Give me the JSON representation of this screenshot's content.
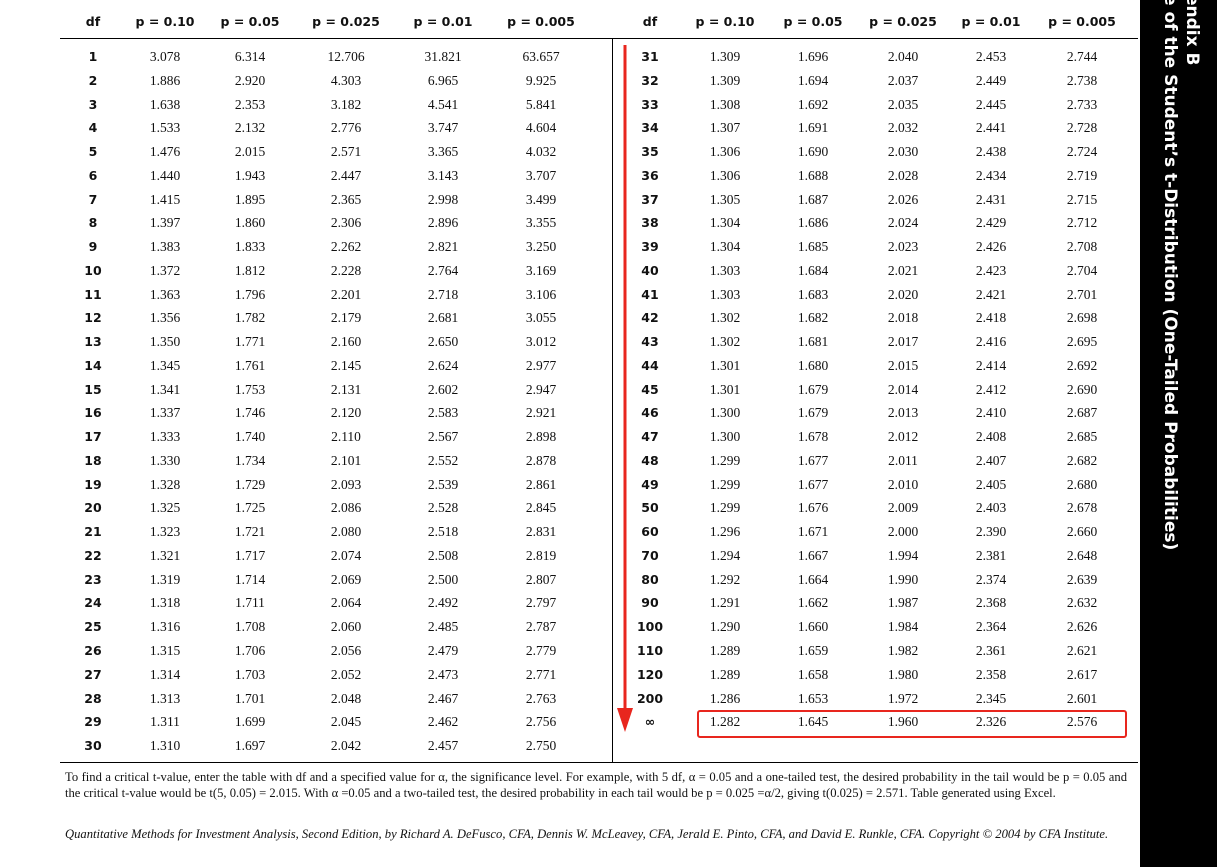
{
  "side": {
    "line1": "endix B",
    "line2": "e of the Student’s t-Distribution (One-Tailed Probabilities)"
  },
  "table": {
    "left_header": [
      "df",
      "p = 0.10",
      "p = 0.05",
      "p = 0.025",
      "p = 0.01",
      "p = 0.005"
    ],
    "right_header": [
      "df",
      "p = 0.10",
      "p = 0.05",
      "p = 0.025",
      "p = 0.01",
      "p = 0.005"
    ],
    "left_rows": [
      [
        "1",
        "3.078",
        "6.314",
        "12.706",
        "31.821",
        "63.657"
      ],
      [
        "2",
        "1.886",
        "2.920",
        "4.303",
        "6.965",
        "9.925"
      ],
      [
        "3",
        "1.638",
        "2.353",
        "3.182",
        "4.541",
        "5.841"
      ],
      [
        "4",
        "1.533",
        "2.132",
        "2.776",
        "3.747",
        "4.604"
      ],
      [
        "5",
        "1.476",
        "2.015",
        "2.571",
        "3.365",
        "4.032"
      ],
      [
        "6",
        "1.440",
        "1.943",
        "2.447",
        "3.143",
        "3.707"
      ],
      [
        "7",
        "1.415",
        "1.895",
        "2.365",
        "2.998",
        "3.499"
      ],
      [
        "8",
        "1.397",
        "1.860",
        "2.306",
        "2.896",
        "3.355"
      ],
      [
        "9",
        "1.383",
        "1.833",
        "2.262",
        "2.821",
        "3.250"
      ],
      [
        "10",
        "1.372",
        "1.812",
        "2.228",
        "2.764",
        "3.169"
      ],
      [
        "11",
        "1.363",
        "1.796",
        "2.201",
        "2.718",
        "3.106"
      ],
      [
        "12",
        "1.356",
        "1.782",
        "2.179",
        "2.681",
        "3.055"
      ],
      [
        "13",
        "1.350",
        "1.771",
        "2.160",
        "2.650",
        "3.012"
      ],
      [
        "14",
        "1.345",
        "1.761",
        "2.145",
        "2.624",
        "2.977"
      ],
      [
        "15",
        "1.341",
        "1.753",
        "2.131",
        "2.602",
        "2.947"
      ],
      [
        "16",
        "1.337",
        "1.746",
        "2.120",
        "2.583",
        "2.921"
      ],
      [
        "17",
        "1.333",
        "1.740",
        "2.110",
        "2.567",
        "2.898"
      ],
      [
        "18",
        "1.330",
        "1.734",
        "2.101",
        "2.552",
        "2.878"
      ],
      [
        "19",
        "1.328",
        "1.729",
        "2.093",
        "2.539",
        "2.861"
      ],
      [
        "20",
        "1.325",
        "1.725",
        "2.086",
        "2.528",
        "2.845"
      ],
      [
        "21",
        "1.323",
        "1.721",
        "2.080",
        "2.518",
        "2.831"
      ],
      [
        "22",
        "1.321",
        "1.717",
        "2.074",
        "2.508",
        "2.819"
      ],
      [
        "23",
        "1.319",
        "1.714",
        "2.069",
        "2.500",
        "2.807"
      ],
      [
        "24",
        "1.318",
        "1.711",
        "2.064",
        "2.492",
        "2.797"
      ],
      [
        "25",
        "1.316",
        "1.708",
        "2.060",
        "2.485",
        "2.787"
      ],
      [
        "26",
        "1.315",
        "1.706",
        "2.056",
        "2.479",
        "2.779"
      ],
      [
        "27",
        "1.314",
        "1.703",
        "2.052",
        "2.473",
        "2.771"
      ],
      [
        "28",
        "1.313",
        "1.701",
        "2.048",
        "2.467",
        "2.763"
      ],
      [
        "29",
        "1.311",
        "1.699",
        "2.045",
        "2.462",
        "2.756"
      ],
      [
        "30",
        "1.310",
        "1.697",
        "2.042",
        "2.457",
        "2.750"
      ]
    ],
    "right_rows": [
      [
        "31",
        "1.309",
        "1.696",
        "2.040",
        "2.453",
        "2.744"
      ],
      [
        "32",
        "1.309",
        "1.694",
        "2.037",
        "2.449",
        "2.738"
      ],
      [
        "33",
        "1.308",
        "1.692",
        "2.035",
        "2.445",
        "2.733"
      ],
      [
        "34",
        "1.307",
        "1.691",
        "2.032",
        "2.441",
        "2.728"
      ],
      [
        "35",
        "1.306",
        "1.690",
        "2.030",
        "2.438",
        "2.724"
      ],
      [
        "36",
        "1.306",
        "1.688",
        "2.028",
        "2.434",
        "2.719"
      ],
      [
        "37",
        "1.305",
        "1.687",
        "2.026",
        "2.431",
        "2.715"
      ],
      [
        "38",
        "1.304",
        "1.686",
        "2.024",
        "2.429",
        "2.712"
      ],
      [
        "39",
        "1.304",
        "1.685",
        "2.023",
        "2.426",
        "2.708"
      ],
      [
        "40",
        "1.303",
        "1.684",
        "2.021",
        "2.423",
        "2.704"
      ],
      [
        "41",
        "1.303",
        "1.683",
        "2.020",
        "2.421",
        "2.701"
      ],
      [
        "42",
        "1.302",
        "1.682",
        "2.018",
        "2.418",
        "2.698"
      ],
      [
        "43",
        "1.302",
        "1.681",
        "2.017",
        "2.416",
        "2.695"
      ],
      [
        "44",
        "1.301",
        "1.680",
        "2.015",
        "2.414",
        "2.692"
      ],
      [
        "45",
        "1.301",
        "1.679",
        "2.014",
        "2.412",
        "2.690"
      ],
      [
        "46",
        "1.300",
        "1.679",
        "2.013",
        "2.410",
        "2.687"
      ],
      [
        "47",
        "1.300",
        "1.678",
        "2.012",
        "2.408",
        "2.685"
      ],
      [
        "48",
        "1.299",
        "1.677",
        "2.011",
        "2.407",
        "2.682"
      ],
      [
        "49",
        "1.299",
        "1.677",
        "2.010",
        "2.405",
        "2.680"
      ],
      [
        "50",
        "1.299",
        "1.676",
        "2.009",
        "2.403",
        "2.678"
      ],
      [
        "60",
        "1.296",
        "1.671",
        "2.000",
        "2.390",
        "2.660"
      ],
      [
        "70",
        "1.294",
        "1.667",
        "1.994",
        "2.381",
        "2.648"
      ],
      [
        "80",
        "1.292",
        "1.664",
        "1.990",
        "2.374",
        "2.639"
      ],
      [
        "90",
        "1.291",
        "1.662",
        "1.987",
        "2.368",
        "2.632"
      ],
      [
        "100",
        "1.290",
        "1.660",
        "1.984",
        "2.364",
        "2.626"
      ],
      [
        "110",
        "1.289",
        "1.659",
        "1.982",
        "2.361",
        "2.621"
      ],
      [
        "120",
        "1.289",
        "1.658",
        "1.980",
        "2.358",
        "2.617"
      ],
      [
        "200",
        "1.286",
        "1.653",
        "1.972",
        "2.345",
        "2.601"
      ],
      [
        "∞",
        "1.282",
        "1.645",
        "1.960",
        "2.326",
        "2.576"
      ]
    ]
  },
  "footnote": "To find a critical t-value, enter the table with df and a specified value for α, the significance level. For example, with 5 df, α = 0.05 and a one-tailed test, the desired probability in the tail would be p = 0.05 and the critical t-value would be t(5, 0.05) = 2.015. With α =0.05 and a two-tailed test, the desired probability in each tail would be p = 0.025 =α/2, giving t(0.025) = 2.571. Table generated using Excel.",
  "citation": "Quantitative Methods for Investment Analysis, Second Edition, by Richard A. DeFusco, CFA, Dennis W. McLeavey, CFA, Jerald E. Pinto, CFA, and David E. Runkle, CFA. Copyright © 2004 by CFA Institute."
}
